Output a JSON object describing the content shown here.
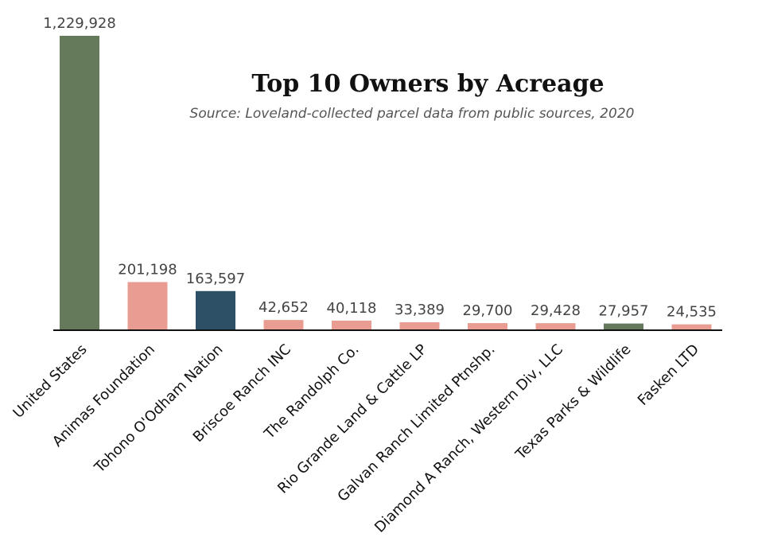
{
  "chart_data": {
    "type": "bar",
    "title": "Top 10 Owners by Acreage",
    "subtitle": "Source: Loveland-collected parcel data from public sources, 2020",
    "xlabel": "",
    "ylabel": "",
    "categories": [
      "United States",
      "Animas Foundation",
      "Tohono O'Odham Nation",
      "Briscoe Ranch INC",
      "The Randolph Co.",
      "Rio Grande Land & Cattle LP",
      "Galvan Ranch Limited Ptnshp.",
      "Diamond A Ranch, Western Div, LLC",
      "Texas Parks & Wildlife",
      "Fasken LTD"
    ],
    "values": [
      1229928,
      201198,
      163597,
      42652,
      40118,
      33389,
      29700,
      29428,
      27957,
      24535
    ],
    "value_labels": [
      "1,229,928",
      "201,198",
      "163,597",
      "42,652",
      "40,118",
      "33,389",
      "29,700",
      "29,428",
      "27,957",
      "24,535"
    ],
    "bar_colors": [
      "#647a5b",
      "#e89c92",
      "#2d5066",
      "#e89c92",
      "#e89c92",
      "#e89c92",
      "#e89c92",
      "#e89c92",
      "#647a5b",
      "#e89c92"
    ],
    "ylim": [
      0,
      1229928
    ],
    "grid": false,
    "legend": "none"
  }
}
